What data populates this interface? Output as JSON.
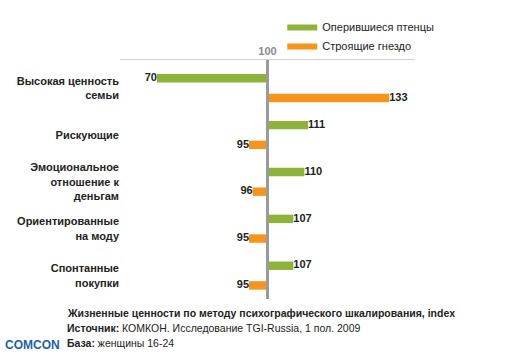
{
  "chart_data": {
    "type": "bar",
    "orientation": "horizontal",
    "categories": [
      "Высокая ценность семьи",
      "Рискующие",
      "Эмоциональное отношение к деньгам",
      "Ориентированные на моду",
      "Спонтанные покупки"
    ],
    "series": [
      {
        "name": "Оперившиеся птенцы",
        "color": "#8db33a",
        "values": [
          70,
          111,
          110,
          107,
          107
        ]
      },
      {
        "name": "Строящие гнездо",
        "color": "#f7941d",
        "values": [
          133,
          95,
          96,
          95,
          95
        ]
      }
    ],
    "baseline": 100,
    "xlim": [
      60,
      140
    ],
    "xticks": [
      100
    ],
    "grid": false,
    "data_labels": true,
    "legend": "top right",
    "caption": "Жизненные ценности по методу психографического шкалирования, index",
    "source": {
      "label": "Источник:",
      "text": "КОМКОН. Исследование TGI-Russia, 1 пол. 2009"
    },
    "sample": {
      "label": "База:",
      "text": "женщины 16-24"
    },
    "logo": "COMCON"
  }
}
